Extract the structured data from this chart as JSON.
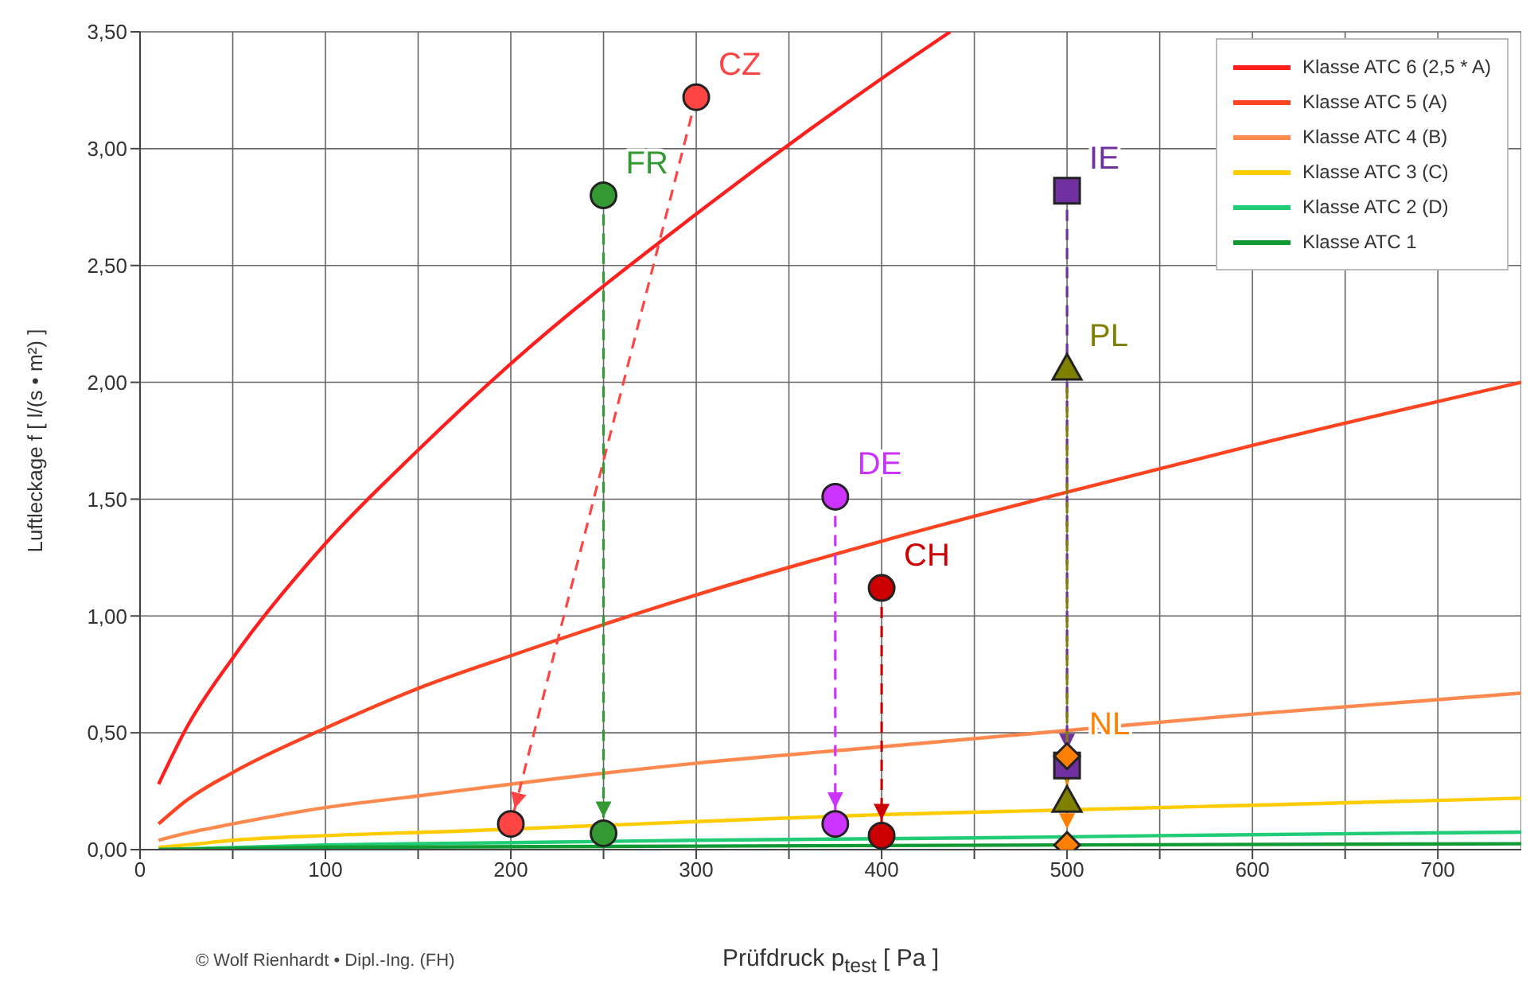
{
  "chart_data": {
    "type": "line",
    "xlabel": "Prüfdruck p$_{test}$ [ Pa ]",
    "ylabel": "Luftleckage f [ l/(s • m²) ]",
    "annotations": [
      "© Wolf Rienhardt • Dipl.-Ing. (FH)"
    ],
    "xlim": [
      0,
      745
    ],
    "xticks": [
      0,
      {
        "value": 50,
        "label": null
      },
      100,
      {
        "value": 150,
        "label": null
      },
      200,
      {
        "value": 250,
        "label": null
      },
      300,
      {
        "value": 350,
        "label": null
      },
      400,
      {
        "value": 450,
        "label": null
      },
      500,
      {
        "value": 550,
        "label": null
      },
      600,
      {
        "value": 650,
        "label": null
      },
      700
    ],
    "ylim": [
      0,
      3.5
    ],
    "yticks": [
      {
        "value": 0,
        "label": "0,00"
      },
      {
        "value": 0.5,
        "label": "0,50"
      },
      {
        "value": 1,
        "label": "1,00"
      },
      {
        "value": 1.5,
        "label": "1,50"
      },
      {
        "value": 2,
        "label": "2,00"
      },
      {
        "value": 2.5,
        "label": "2,50"
      },
      {
        "value": 3,
        "label": "3,00"
      },
      {
        "value": 3.5,
        "label": "3,50"
      }
    ],
    "grid": true,
    "legend": "top right",
    "marker": "none",
    "line_style": "solid",
    "series": [
      {
        "name": "Klasse ATC 6 (2,5 * A)",
        "color": "#ff1f1f",
        "x": [
          10,
          25,
          50,
          100,
          150,
          200,
          300,
          400,
          437
        ],
        "values": [
          0.28,
          0.52,
          0.82,
          1.31,
          1.71,
          2.08,
          2.72,
          3.3,
          3.5
        ]
      },
      {
        "name": "Klasse ATC 5 (A)",
        "color": "#ff4422",
        "x": [
          10,
          25,
          50,
          100,
          150,
          200,
          300,
          400,
          500,
          600,
          745
        ],
        "values": [
          0.11,
          0.21,
          0.33,
          0.52,
          0.69,
          0.83,
          1.09,
          1.32,
          1.53,
          1.73,
          2.0
        ]
      },
      {
        "name": "Klasse ATC 4 (B)",
        "color": "#ff8a50",
        "x": [
          10,
          25,
          50,
          100,
          150,
          200,
          300,
          400,
          500,
          600,
          745
        ],
        "values": [
          0.04,
          0.07,
          0.11,
          0.18,
          0.23,
          0.28,
          0.37,
          0.44,
          0.51,
          0.58,
          0.67
        ]
      },
      {
        "name": "Klasse ATC 3 (C)",
        "color": "#ffcc00",
        "x": [
          10,
          25,
          50,
          100,
          175,
          300,
          400,
          450,
          600,
          745
        ],
        "values": [
          0.01,
          0.02,
          0.04,
          0.06,
          0.08,
          0.12,
          0.15,
          0.16,
          0.19,
          0.22
        ]
      },
      {
        "name": "Klasse ATC 2 (D)",
        "color": "#22cc77",
        "x": [
          10,
          100,
          200,
          300,
          450,
          550,
          745
        ],
        "values": [
          0.0,
          0.02,
          0.03,
          0.04,
          0.05,
          0.06,
          0.075
        ]
      },
      {
        "name": "Klasse ATC 1",
        "color": "#119933",
        "x": [
          10,
          100,
          300,
          500,
          745
        ],
        "values": [
          0.0,
          0.01,
          0.015,
          0.02,
          0.025
        ]
      },
      {
        "name": "CZ",
        "type": "line",
        "line_style": "dashed",
        "marker": "circle",
        "color": "#ff4444",
        "x": [
          300,
          200
        ],
        "values": [
          3.22,
          0.11
        ]
      },
      {
        "name": "FR",
        "type": "line",
        "line_style": "dashed",
        "marker": "circle",
        "color": "#339933",
        "x": [
          250,
          250
        ],
        "values": [
          2.8,
          0.07
        ]
      },
      {
        "name": "DE",
        "type": "line",
        "line_style": "dashed",
        "marker": "circle",
        "color": "#cc33ff",
        "x": [
          375,
          375
        ],
        "values": [
          1.51,
          0.11
        ]
      },
      {
        "name": "CH",
        "type": "line",
        "line_style": "dashed",
        "marker": "circle",
        "color": "#cc0000",
        "x": [
          400,
          400
        ],
        "values": [
          1.12,
          0.06
        ]
      },
      {
        "name": "IE",
        "type": "line",
        "line_style": "dashed",
        "marker": "square",
        "color": "#7030a0",
        "x": [
          500,
          500
        ],
        "values": [
          2.82,
          0.36
        ]
      },
      {
        "name": "PL",
        "type": "line",
        "line_style": "dashed",
        "marker": "triangle",
        "color": "#808000",
        "x": [
          500,
          500
        ],
        "values": [
          2.06,
          0.21
        ]
      },
      {
        "name": "NL",
        "type": "line",
        "line_style": "dashed",
        "marker": "diamond",
        "color": "#ff7f00",
        "x": [
          500,
          500
        ],
        "values": [
          0.4,
          0.02
        ]
      }
    ]
  }
}
